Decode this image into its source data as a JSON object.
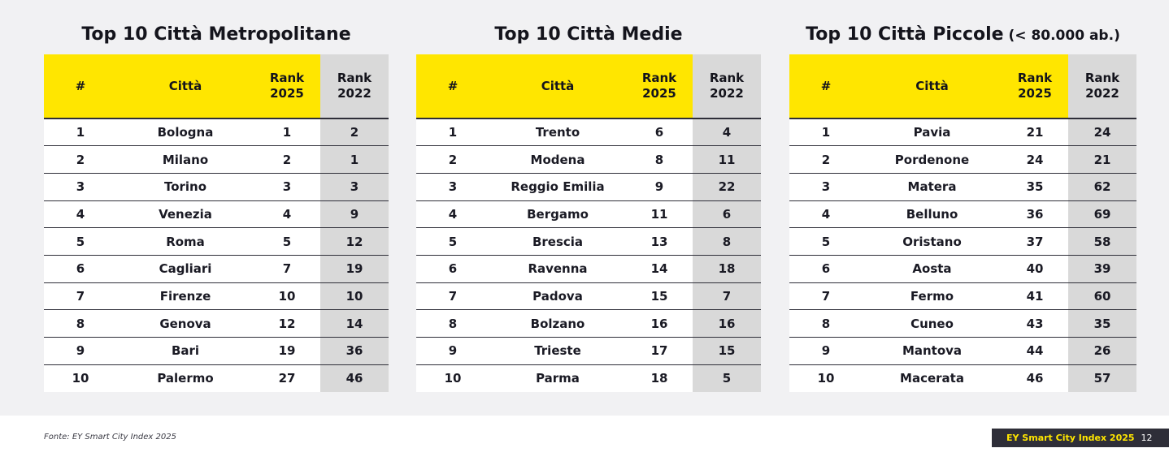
{
  "tables": [
    {
      "title": "Top 10 Città Metropolitane",
      "title_suffix": "",
      "headers": {
        "num": "#",
        "city": "Città",
        "rank_2025": "Rank\n2025",
        "rank_2022": "Rank\n2022"
      },
      "rows": [
        {
          "num": "1",
          "city": "Bologna",
          "r2025": "1",
          "r2022": "2"
        },
        {
          "num": "2",
          "city": "Milano",
          "r2025": "2",
          "r2022": "1"
        },
        {
          "num": "3",
          "city": "Torino",
          "r2025": "3",
          "r2022": "3"
        },
        {
          "num": "4",
          "city": "Venezia",
          "r2025": "4",
          "r2022": "9"
        },
        {
          "num": "5",
          "city": "Roma",
          "r2025": "5",
          "r2022": "12"
        },
        {
          "num": "6",
          "city": "Cagliari",
          "r2025": "7",
          "r2022": "19"
        },
        {
          "num": "7",
          "city": "Firenze",
          "r2025": "10",
          "r2022": "10"
        },
        {
          "num": "8",
          "city": "Genova",
          "r2025": "12",
          "r2022": "14"
        },
        {
          "num": "9",
          "city": "Bari",
          "r2025": "19",
          "r2022": "36"
        },
        {
          "num": "10",
          "city": "Palermo",
          "r2025": "27",
          "r2022": "46"
        }
      ]
    },
    {
      "title": "Top 10 Città Medie",
      "title_suffix": "",
      "headers": {
        "num": "#",
        "city": "Città",
        "rank_2025": "Rank\n2025",
        "rank_2022": "Rank\n2022"
      },
      "rows": [
        {
          "num": "1",
          "city": "Trento",
          "r2025": "6",
          "r2022": "4"
        },
        {
          "num": "2",
          "city": "Modena",
          "r2025": "8",
          "r2022": "11"
        },
        {
          "num": "3",
          "city": "Reggio Emilia",
          "r2025": "9",
          "r2022": "22"
        },
        {
          "num": "4",
          "city": "Bergamo",
          "r2025": "11",
          "r2022": "6"
        },
        {
          "num": "5",
          "city": "Brescia",
          "r2025": "13",
          "r2022": "8"
        },
        {
          "num": "6",
          "city": "Ravenna",
          "r2025": "14",
          "r2022": "18"
        },
        {
          "num": "7",
          "city": "Padova",
          "r2025": "15",
          "r2022": "7"
        },
        {
          "num": "8",
          "city": "Bolzano",
          "r2025": "16",
          "r2022": "16"
        },
        {
          "num": "9",
          "city": "Trieste",
          "r2025": "17",
          "r2022": "15"
        },
        {
          "num": "10",
          "city": "Parma",
          "r2025": "18",
          "r2022": "5"
        }
      ]
    },
    {
      "title": "Top 10 Città Piccole",
      "title_suffix": " (< 80.000 ab.)",
      "headers": {
        "num": "#",
        "city": "Città",
        "rank_2025": "Rank\n2025",
        "rank_2022": "Rank\n2022"
      },
      "rows": [
        {
          "num": "1",
          "city": "Pavia",
          "r2025": "21",
          "r2022": "24"
        },
        {
          "num": "2",
          "city": "Pordenone",
          "r2025": "24",
          "r2022": "21"
        },
        {
          "num": "3",
          "city": "Matera",
          "r2025": "35",
          "r2022": "62"
        },
        {
          "num": "4",
          "city": "Belluno",
          "r2025": "36",
          "r2022": "69"
        },
        {
          "num": "5",
          "city": "Oristano",
          "r2025": "37",
          "r2022": "58"
        },
        {
          "num": "6",
          "city": "Aosta",
          "r2025": "40",
          "r2022": "39"
        },
        {
          "num": "7",
          "city": "Fermo",
          "r2025": "41",
          "r2022": "60"
        },
        {
          "num": "8",
          "city": "Cuneo",
          "r2025": "43",
          "r2022": "35"
        },
        {
          "num": "9",
          "city": "Mantova",
          "r2025": "44",
          "r2022": "26"
        },
        {
          "num": "10",
          "city": "Macerata",
          "r2025": "46",
          "r2022": "57"
        }
      ]
    }
  ],
  "footer": {
    "source": "Fonte: EY Smart City Index 2025",
    "brand": "EY Smart City Index 2025",
    "page": "12"
  },
  "colors": {
    "accent": "#ffe600",
    "header_grey": "#d9d9d9",
    "dark": "#2e2e38",
    "panel": "#f1f1f3"
  }
}
